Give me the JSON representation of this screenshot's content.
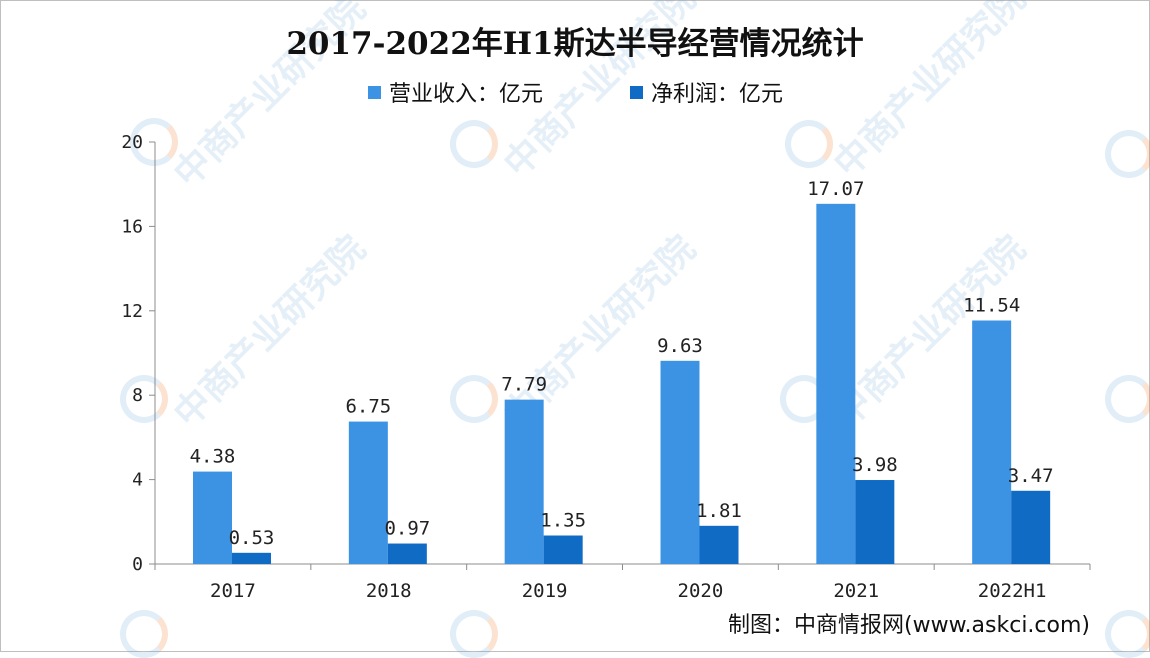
{
  "chart_data": {
    "type": "bar",
    "title": "2017-2022年H1斯达半导经营情况统计",
    "categories": [
      "2017",
      "2018",
      "2019",
      "2020",
      "2021",
      "2022H1"
    ],
    "series": [
      {
        "name": "营业收入：亿元",
        "color": "#3d93e3",
        "values": [
          4.38,
          6.75,
          7.79,
          9.63,
          17.07,
          11.54
        ],
        "labels": [
          "4.38",
          "6.75",
          "7.79",
          "9.63",
          "17.07",
          "11.54"
        ]
      },
      {
        "name": "净利润：亿元",
        "color": "#0f6bc4",
        "values": [
          0.53,
          0.97,
          1.35,
          1.81,
          3.98,
          3.47
        ],
        "labels": [
          "0.53",
          "0.97",
          "1.35",
          "1.81",
          "3.98",
          "3.47"
        ]
      }
    ],
    "yticks": [
      "0",
      "4",
      "8",
      "12",
      "16",
      "20"
    ],
    "ylim": [
      0,
      20
    ],
    "grid": false,
    "legend": "top-center"
  },
  "watermark_text": "中商产业研究院",
  "source": "制图：中商情报网(www.askci.com)"
}
